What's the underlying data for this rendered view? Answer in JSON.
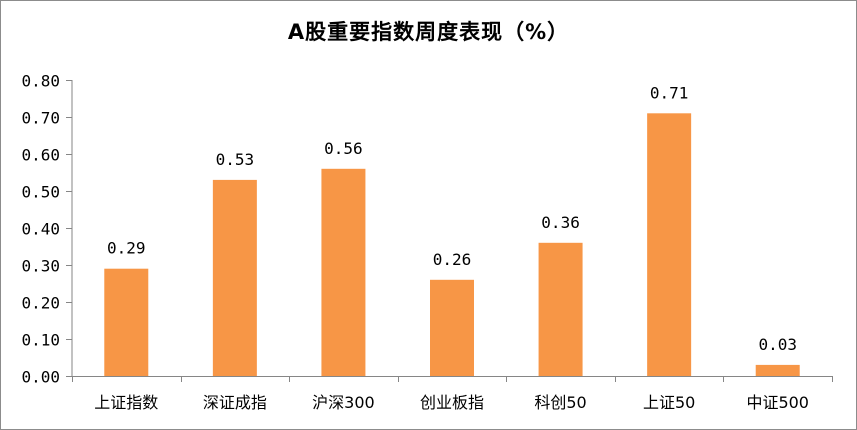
{
  "chart_data": {
    "type": "bar",
    "title": "A股重要指数周度表现（%）",
    "xlabel": "",
    "ylabel": "",
    "categories": [
      "上证指数",
      "深证成指",
      "沪深300",
      "创业板指",
      "科创50",
      "上证50",
      "中证500"
    ],
    "values": [
      0.29,
      0.53,
      0.56,
      0.26,
      0.36,
      0.71,
      0.03
    ],
    "value_labels": [
      "0.29",
      "0.53",
      "0.56",
      "0.26",
      "0.36",
      "0.71",
      "0.03"
    ],
    "ylim": [
      0,
      0.8
    ],
    "yticks": [
      0,
      0.1,
      0.2,
      0.3,
      0.4,
      0.5,
      0.6,
      0.7,
      0.8
    ],
    "ytick_labels": [
      "0.00",
      "0.10",
      "0.20",
      "0.30",
      "0.40",
      "0.50",
      "0.60",
      "0.70",
      "0.80"
    ],
    "grid": false,
    "legend": "none",
    "bar_color": "#F79646"
  }
}
